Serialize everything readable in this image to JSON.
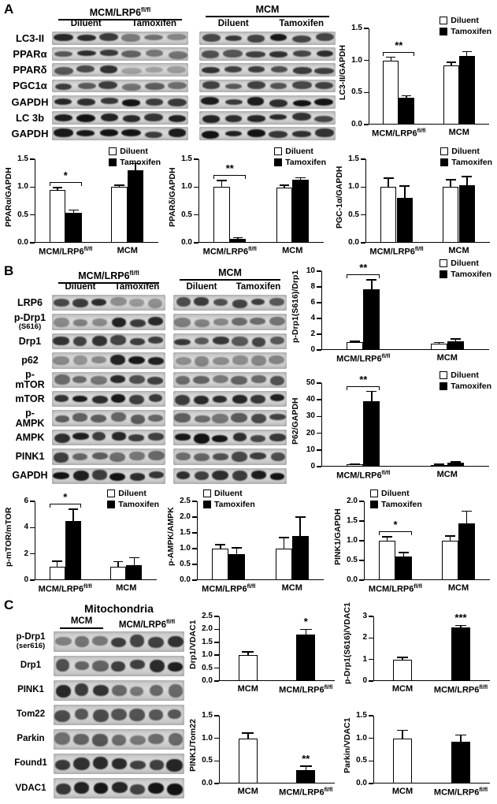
{
  "legend_labels": [
    "Diluent",
    "Tamoxifen"
  ],
  "colors": {
    "diluent_fill": "#ffffff",
    "tamoxifen_fill": "#000000",
    "axis": "#000000"
  },
  "panels": {
    "A": {
      "label": "A",
      "blot": {
        "groups": [
          {
            "label": "MCM/LRP6",
            "sup": "fl/fl",
            "subs": [
              "Diluent",
              "Tamoxifen"
            ]
          },
          {
            "label": "MCM",
            "subs": [
              "Diluent",
              "Tamoxifen"
            ]
          }
        ],
        "rows": [
          {
            "label": "LC3-II",
            "band_intensity": [
              0.85,
              0.4,
              0.8,
              0.85
            ]
          },
          {
            "label": "PPARα",
            "band_intensity": [
              0.72,
              0.45,
              0.66,
              0.76
            ]
          },
          {
            "label": "PPARδ",
            "band_intensity": [
              0.76,
              0.2,
              0.7,
              0.76
            ]
          },
          {
            "label": "PGC1α",
            "band_intensity": [
              0.66,
              0.5,
              0.62,
              0.68
            ]
          },
          {
            "label": "GAPDH",
            "band_intensity": [
              0.92,
              0.92,
              0.92,
              0.92
            ]
          },
          {
            "label": "LC 3b",
            "band_intensity": [
              0.85,
              0.76,
              0.82,
              0.85
            ]
          },
          {
            "label": "GAPDH",
            "band_intensity": [
              0.92,
              0.92,
              0.92,
              0.92
            ]
          }
        ]
      }
    },
    "B": {
      "label": "B",
      "blot": {
        "groups": [
          {
            "label": "MCM/LRP6",
            "sup": "fl/fl",
            "subs": [
              "Diluent",
              "Tamoxifen"
            ]
          },
          {
            "label": "MCM",
            "subs": [
              "Diluent",
              "Tamoxifen"
            ]
          }
        ],
        "rows": [
          {
            "label": "LRP6",
            "band_intensity": [
              0.8,
              0.25,
              0.75,
              0.7
            ]
          },
          {
            "label": "p-Drp1",
            "label2": "(S616)",
            "band_intensity": [
              0.35,
              0.82,
              0.4,
              0.45
            ]
          },
          {
            "label": "Drp1",
            "band_intensity": [
              0.75,
              0.75,
              0.7,
              0.7
            ]
          },
          {
            "label": "p62",
            "band_intensity": [
              0.3,
              0.85,
              0.3,
              0.35
            ]
          },
          {
            "label": "p-mTOR",
            "band_intensity": [
              0.42,
              0.8,
              0.46,
              0.52
            ]
          },
          {
            "label": "mTOR",
            "band_intensity": [
              0.85,
              0.85,
              0.8,
              0.8
            ]
          },
          {
            "label": "p-AMPK",
            "band_intensity": [
              0.6,
              0.55,
              0.5,
              0.62
            ]
          },
          {
            "label": "AMPK",
            "band_intensity": [
              0.85,
              0.85,
              0.85,
              0.85
            ]
          },
          {
            "label": "PINK1",
            "band_intensity": [
              0.62,
              0.45,
              0.55,
              0.66
            ]
          },
          {
            "label": "GAPDH",
            "band_intensity": [
              0.92,
              0.92,
              0.92,
              0.92
            ]
          }
        ]
      }
    },
    "C": {
      "label": "C",
      "blot": {
        "title": "Mitochondria",
        "groups": [
          {
            "label": "MCM"
          },
          {
            "label": "MCM/LRP6",
            "sup": "fl/fl"
          }
        ],
        "rows": [
          {
            "label": "p-Drp1",
            "label2": "(ser616)",
            "band_intensity": [
              0.45,
              0.8
            ]
          },
          {
            "label": "Drp1",
            "band_intensity": [
              0.55,
              0.8
            ]
          },
          {
            "label": "PINK1",
            "band_intensity": [
              0.75,
              0.45
            ]
          },
          {
            "label": "Tom22",
            "band_intensity": [
              0.6,
              0.6
            ]
          },
          {
            "label": "Parkin",
            "band_intensity": [
              0.55,
              0.5
            ]
          },
          {
            "label": "Found1",
            "band_intensity": [
              0.8,
              0.8
            ]
          },
          {
            "label": "VDAC1",
            "band_intensity": [
              0.86,
              0.86
            ]
          }
        ]
      }
    }
  },
  "chart_data": [
    {
      "container": "chart-lc3",
      "type": "grouped",
      "ylabel": "LC3-II/GAPDH",
      "ymax": 1.5,
      "yticks": [
        "0.0",
        "0.5",
        "1.0",
        "1.5"
      ],
      "categories": [
        {
          "text": "MCM/LRP6",
          "sup": "fl/fl"
        },
        {
          "text": "MCM"
        }
      ],
      "series": [
        {
          "name": "Diluent",
          "fill": "#ffffff",
          "values": [
            1.0,
            0.92
          ],
          "errors": [
            0.05,
            0.05
          ]
        },
        {
          "name": "Tamoxifen",
          "fill": "#000000",
          "values": [
            0.42,
            1.07
          ],
          "errors": [
            0.03,
            0.07
          ]
        }
      ],
      "legend": true,
      "legend_pos": "right",
      "sig": [
        {
          "kind": "bracket",
          "group": 0,
          "label": "**"
        }
      ]
    },
    {
      "container": "chart-ppara",
      "type": "grouped",
      "ylabel": "PPARα/GAPDH",
      "ymax": 1.5,
      "yticks": [
        "0.0",
        "0.5",
        "1.0",
        "1.5"
      ],
      "categories": [
        {
          "text": "MCM/LRP6",
          "sup": "fl/fl"
        },
        {
          "text": "MCM"
        }
      ],
      "series": [
        {
          "name": "Diluent",
          "fill": "#ffffff",
          "values": [
            0.95,
            1.0
          ],
          "errors": [
            0.04,
            0.03
          ]
        },
        {
          "name": "Tamoxifen",
          "fill": "#000000",
          "values": [
            0.54,
            1.3
          ],
          "errors": [
            0.05,
            0.12
          ]
        }
      ],
      "legend": true,
      "legend_pos": "right",
      "sig": [
        {
          "kind": "bracket",
          "group": 0,
          "label": "*"
        }
      ]
    },
    {
      "container": "chart-ppard",
      "type": "grouped",
      "ylabel": "PPARδ/GAPDH",
      "ymax": 1.5,
      "yticks": [
        "0.0",
        "0.5",
        "1.0",
        "1.5"
      ],
      "categories": [
        {
          "text": "MCM/LRP6",
          "sup": "fl/fl"
        },
        {
          "text": "MCM"
        }
      ],
      "series": [
        {
          "name": "Diluent",
          "fill": "#ffffff",
          "values": [
            1.0,
            0.99
          ],
          "errors": [
            0.12,
            0.04
          ]
        },
        {
          "name": "Tamoxifen",
          "fill": "#000000",
          "values": [
            0.07,
            1.13
          ],
          "errors": [
            0.02,
            0.04
          ]
        }
      ],
      "legend": true,
      "legend_pos": "right",
      "sig": [
        {
          "kind": "bracket",
          "group": 0,
          "label": "**"
        }
      ]
    },
    {
      "container": "chart-pgc1a",
      "type": "grouped",
      "ylabel": "PGC-1α/GAPDH",
      "ymax": 1.5,
      "yticks": [
        "0.0",
        "0.5",
        "1.0",
        "1.5"
      ],
      "categories": [
        {
          "text": "MCM/LRP6",
          "sup": "fl/fl"
        },
        {
          "text": "MCM"
        }
      ],
      "series": [
        {
          "name": "Diluent",
          "fill": "#ffffff",
          "values": [
            1.0,
            1.0
          ],
          "errors": [
            0.16,
            0.13
          ]
        },
        {
          "name": "Tamoxifen",
          "fill": "#000000",
          "values": [
            0.8,
            1.04
          ],
          "errors": [
            0.22,
            0.15
          ]
        }
      ],
      "legend": true,
      "legend_pos": "right",
      "sig": []
    },
    {
      "container": "chart-pdrp1-drp1",
      "type": "grouped",
      "ylabel": "p-Drp1(S616)/Drp1",
      "ymax": 10,
      "yticks": [
        "0",
        "2",
        "4",
        "6",
        "8",
        "10"
      ],
      "categories": [
        {
          "text": "MCM/LRP6",
          "sup": "fl/fl"
        },
        {
          "text": "MCM"
        }
      ],
      "series": [
        {
          "name": "Diluent",
          "fill": "#ffffff",
          "values": [
            1.0,
            0.8
          ],
          "errors": [
            0.12,
            0.15
          ]
        },
        {
          "name": "Tamoxifen",
          "fill": "#000000",
          "values": [
            7.7,
            1.1
          ],
          "errors": [
            1.2,
            0.3
          ]
        }
      ],
      "legend": true,
      "legend_pos": "right",
      "sig": [
        {
          "kind": "bracket",
          "group": 0,
          "label": "**"
        }
      ]
    },
    {
      "container": "chart-p62",
      "type": "grouped",
      "ylabel": "P62/GAPDH",
      "ymax": 50,
      "yticks": [
        "0",
        "10",
        "20",
        "30",
        "40",
        "50"
      ],
      "categories": [
        {
          "text": "MCM/LRP6",
          "sup": "fl/fl"
        },
        {
          "text": "MCM"
        }
      ],
      "series": [
        {
          "name": "Diluent",
          "fill": "#ffffff",
          "values": [
            1.2,
            1.0
          ],
          "errors": [
            0.4,
            0.3
          ]
        },
        {
          "name": "Tamoxifen",
          "fill": "#000000",
          "values": [
            39,
            2.2
          ],
          "errors": [
            6,
            0.6
          ]
        }
      ],
      "legend": true,
      "legend_pos": "right",
      "sig": [
        {
          "kind": "bracket",
          "group": 0,
          "label": "**"
        }
      ]
    },
    {
      "container": "chart-pmtor",
      "type": "grouped",
      "ylabel": "p-mTOR/mTOR",
      "ymax": 6,
      "yticks": [
        "0",
        "2",
        "4",
        "6"
      ],
      "categories": [
        {
          "text": "MCM/LRP6",
          "sup": "fl/fl"
        },
        {
          "text": "MCM"
        }
      ],
      "series": [
        {
          "name": "Diluent",
          "fill": "#ffffff",
          "values": [
            1.0,
            1.0
          ],
          "errors": [
            0.45,
            0.4
          ]
        },
        {
          "name": "Tamoxifen",
          "fill": "#000000",
          "values": [
            4.5,
            1.15
          ],
          "errors": [
            0.9,
            0.55
          ]
        }
      ],
      "legend": true,
      "legend_pos": "right",
      "sig": [
        {
          "kind": "bracket",
          "group": 0,
          "label": "*"
        }
      ]
    },
    {
      "container": "chart-pampk",
      "type": "grouped",
      "ylabel": "p-AMPK/AMPK",
      "ymax": 2.5,
      "yticks": [
        "0.0",
        "0.5",
        "1.0",
        "1.5",
        "2.0",
        "2.5"
      ],
      "categories": [
        {
          "text": "MCM/LRP6",
          "sup": "fl/fl"
        },
        {
          "text": "MCM"
        }
      ],
      "series": [
        {
          "name": "Diluent",
          "fill": "#ffffff",
          "values": [
            1.0,
            1.0
          ],
          "errors": [
            0.12,
            0.35
          ]
        },
        {
          "name": "Tamoxifen",
          "fill": "#000000",
          "values": [
            0.82,
            1.4
          ],
          "errors": [
            0.2,
            0.6
          ]
        }
      ],
      "legend": true,
      "legend_pos": "left",
      "sig": []
    },
    {
      "container": "chart-pink1-gapdh",
      "type": "grouped",
      "ylabel": "PINK1/GAPDH",
      "ymax": 2.0,
      "yticks": [
        "0.0",
        "0.5",
        "1.0",
        "1.5",
        "2.0"
      ],
      "categories": [
        {
          "text": "MCM/LRP6",
          "sup": "fl/fl"
        },
        {
          "text": "MCM"
        }
      ],
      "series": [
        {
          "name": "Diluent",
          "fill": "#ffffff",
          "values": [
            1.0,
            1.0
          ],
          "errors": [
            0.1,
            0.12
          ]
        },
        {
          "name": "Tamoxifen",
          "fill": "#000000",
          "values": [
            0.6,
            1.45
          ],
          "errors": [
            0.1,
            0.3
          ]
        }
      ],
      "legend": true,
      "legend_pos": "left",
      "sig": [
        {
          "kind": "bracket",
          "group": 0,
          "label": "*"
        }
      ]
    },
    {
      "container": "chart-drp1-vdac1",
      "type": "single",
      "ylabel": "Drp1/VDAC1",
      "ymax": 2.5,
      "yticks": [
        "0.0",
        "0.5",
        "1.0",
        "1.5",
        "2.0",
        "2.5"
      ],
      "categories": [
        {
          "text": "MCM"
        },
        {
          "text": "MCM/LRP6",
          "sup": "fl/fl"
        }
      ],
      "bars": [
        {
          "value": 1.0,
          "error": 0.13,
          "fill": "#ffffff"
        },
        {
          "value": 1.8,
          "error": 0.2,
          "fill": "#000000",
          "sig": "*"
        }
      ],
      "legend": false
    },
    {
      "container": "chart-pdrp1-vdac1",
      "type": "single",
      "ylabel": "p-Drp1(S616)/VDAC1",
      "ymax": 3,
      "yticks": [
        "0",
        "1",
        "2",
        "3"
      ],
      "categories": [
        {
          "text": "MCM"
        },
        {
          "text": "MCM/LRP6",
          "sup": "fl/fl"
        }
      ],
      "bars": [
        {
          "value": 1.0,
          "error": 0.1,
          "fill": "#ffffff"
        },
        {
          "value": 2.5,
          "error": 0.08,
          "fill": "#000000",
          "sig": "***"
        }
      ],
      "legend": false
    },
    {
      "container": "chart-pink1-tom22",
      "type": "single",
      "ylabel": "PINK1/Tom22",
      "ymax": 1.5,
      "yticks": [
        "0.0",
        "0.5",
        "1.0",
        "1.5"
      ],
      "categories": [
        {
          "text": "MCM"
        },
        {
          "text": "MCM/LRP6",
          "sup": "fl/fl"
        }
      ],
      "bars": [
        {
          "value": 1.0,
          "error": 0.12,
          "fill": "#ffffff"
        },
        {
          "value": 0.3,
          "error": 0.08,
          "fill": "#000000",
          "sig": "**"
        }
      ],
      "legend": false
    },
    {
      "container": "chart-parkin-vdac1",
      "type": "single",
      "ylabel": "Parkin/VDAC1",
      "ymax": 1.5,
      "yticks": [
        "0.0",
        "0.5",
        "1.0",
        "1.5"
      ],
      "categories": [
        {
          "text": "MCM"
        },
        {
          "text": "MCM/LRP6",
          "sup": "fl/fl"
        }
      ],
      "bars": [
        {
          "value": 1.0,
          "error": 0.18,
          "fill": "#ffffff"
        },
        {
          "value": 0.92,
          "error": 0.15,
          "fill": "#000000"
        }
      ],
      "legend": false
    }
  ]
}
